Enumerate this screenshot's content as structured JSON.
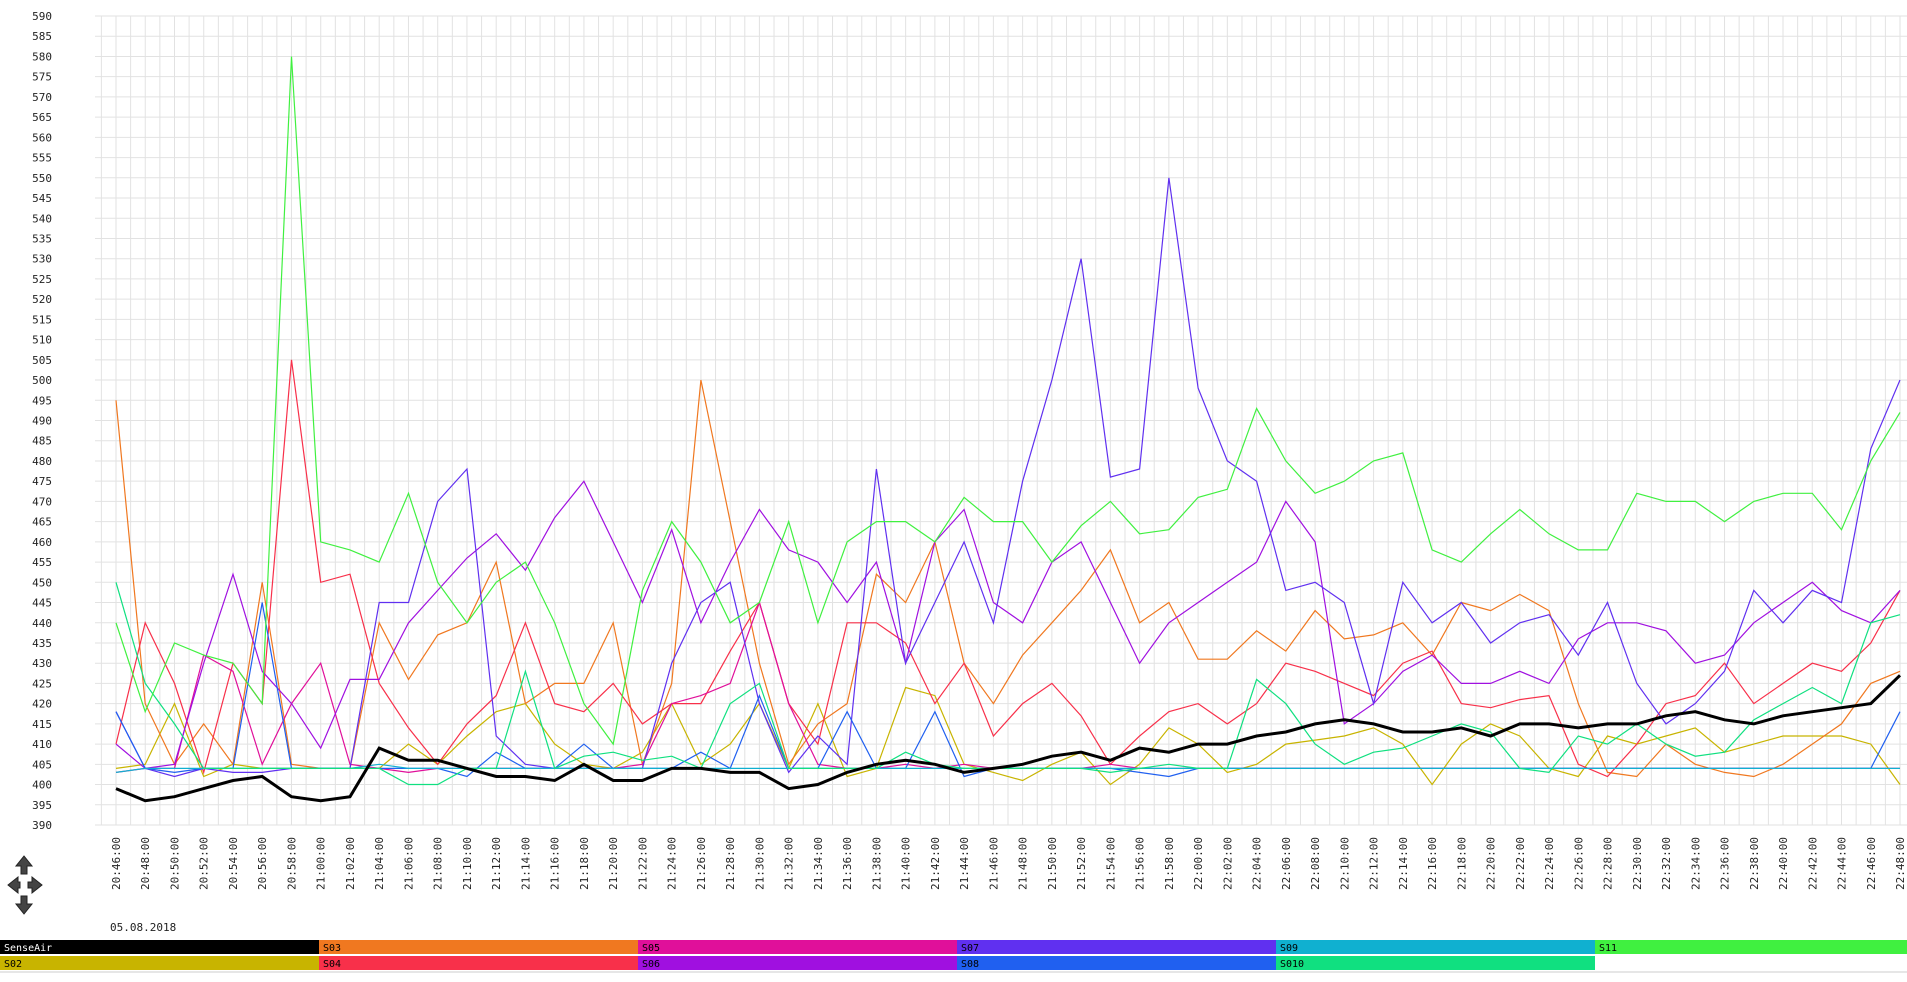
{
  "chart_data": {
    "type": "line",
    "date": "05.08.2018",
    "categories": [
      "20:46:00",
      "20:48:00",
      "20:50:00",
      "20:52:00",
      "20:54:00",
      "20:56:00",
      "20:58:00",
      "21:00:00",
      "21:02:00",
      "21:04:00",
      "21:06:00",
      "21:08:00",
      "21:10:00",
      "21:12:00",
      "21:14:00",
      "21:16:00",
      "21:18:00",
      "21:20:00",
      "21:22:00",
      "21:24:00",
      "21:26:00",
      "21:28:00",
      "21:30:00",
      "21:32:00",
      "21:34:00",
      "21:36:00",
      "21:38:00",
      "21:40:00",
      "21:42:00",
      "21:44:00",
      "21:46:00",
      "21:48:00",
      "21:50:00",
      "21:52:00",
      "21:54:00",
      "21:56:00",
      "21:58:00",
      "22:00:00",
      "22:02:00",
      "22:04:00",
      "22:06:00",
      "22:08:00",
      "22:10:00",
      "22:12:00",
      "22:14:00",
      "22:16:00",
      "22:18:00",
      "22:20:00",
      "22:22:00",
      "22:24:00",
      "22:26:00",
      "22:28:00",
      "22:30:00",
      "22:32:00",
      "22:34:00",
      "22:36:00",
      "22:38:00",
      "22:40:00",
      "22:42:00",
      "22:44:00",
      "22:46:00",
      "22:48:00"
    ],
    "ylim": [
      390,
      590
    ],
    "yticks": [
      390,
      395,
      400,
      405,
      410,
      415,
      420,
      425,
      430,
      435,
      440,
      445,
      450,
      455,
      460,
      465,
      470,
      475,
      480,
      485,
      490,
      495,
      500,
      505,
      510,
      515,
      520,
      525,
      530,
      535,
      540,
      545,
      550,
      555,
      560,
      565,
      570,
      575,
      580,
      585,
      590
    ],
    "grid": true,
    "series": [
      {
        "name": "SenseAir",
        "color": "#000000",
        "values": [
          399,
          396,
          397,
          399,
          401,
          402,
          397,
          396,
          397,
          409,
          406,
          406,
          404,
          402,
          402,
          401,
          405,
          401,
          401,
          404,
          404,
          403,
          403,
          399,
          400,
          403,
          405,
          406,
          405,
          403,
          404,
          405,
          407,
          408,
          406,
          409,
          408,
          410,
          410,
          412,
          413,
          415,
          416,
          415,
          413,
          413,
          414,
          412,
          415,
          415,
          414,
          415,
          415,
          417,
          418,
          416,
          415,
          417,
          418,
          419,
          420,
          427
        ]
      },
      {
        "name": "S02",
        "color": "#c8b400",
        "values": [
          404,
          405,
          420,
          402,
          405,
          404,
          404,
          404,
          404,
          404,
          410,
          405,
          412,
          418,
          420,
          410,
          405,
          404,
          408,
          420,
          405,
          410,
          420,
          404,
          420,
          402,
          404,
          424,
          422,
          405,
          403,
          401,
          405,
          408,
          400,
          405,
          414,
          410,
          403,
          405,
          410,
          411,
          412,
          414,
          410,
          400,
          410,
          415,
          412,
          404,
          402,
          412,
          410,
          412,
          414,
          408,
          410,
          412,
          412,
          412,
          410,
          400
        ]
      },
      {
        "name": "S03",
        "color": "#f07820",
        "values": [
          495,
          420,
          405,
          415,
          405,
          450,
          405,
          404,
          404,
          440,
          426,
          437,
          440,
          455,
          420,
          425,
          425,
          440,
          405,
          425,
          500,
          465,
          430,
          405,
          415,
          420,
          452,
          445,
          460,
          430,
          420,
          432,
          440,
          448,
          458,
          440,
          445,
          431,
          431,
          438,
          433,
          443,
          436,
          437,
          440,
          432,
          445,
          443,
          447,
          443,
          420,
          403,
          402,
          410,
          405,
          403,
          402,
          405,
          410,
          415,
          425,
          428
        ]
      },
      {
        "name": "S04",
        "color": "#f8304a",
        "values": [
          410,
          440,
          425,
          403,
          430,
          420,
          505,
          450,
          452,
          425,
          414,
          405,
          415,
          422,
          440,
          420,
          418,
          425,
          415,
          420,
          420,
          433,
          445,
          420,
          410,
          440,
          440,
          435,
          420,
          430,
          412,
          420,
          425,
          417,
          405,
          412,
          418,
          420,
          415,
          420,
          430,
          428,
          425,
          422,
          430,
          433,
          420,
          419,
          421,
          422,
          405,
          402,
          410,
          420,
          422,
          430,
          420,
          425,
          430,
          428,
          435,
          448
        ]
      },
      {
        "name": "S05",
        "color": "#e0109a",
        "values": [
          403,
          404,
          404,
          432,
          428,
          405,
          420,
          430,
          405,
          404,
          403,
          404,
          404,
          404,
          404,
          404,
          404,
          404,
          405,
          420,
          422,
          425,
          445,
          420,
          405,
          404,
          404,
          405,
          404,
          405,
          404,
          404,
          404,
          404,
          405,
          404,
          404,
          404,
          404,
          404,
          404,
          404,
          404,
          404,
          404,
          404,
          404,
          404,
          404,
          404,
          404,
          404,
          404,
          404,
          404,
          404,
          404,
          404,
          404,
          404,
          404,
          404
        ]
      },
      {
        "name": "S06",
        "color": "#a010e0",
        "values": [
          410,
          404,
          405,
          430,
          452,
          428,
          420,
          409,
          426,
          426,
          440,
          448,
          456,
          462,
          453,
          466,
          475,
          460,
          445,
          463,
          440,
          455,
          468,
          458,
          455,
          445,
          455,
          430,
          460,
          468,
          445,
          440,
          455,
          460,
          445,
          430,
          440,
          445,
          450,
          455,
          470,
          460,
          415,
          420,
          428,
          432,
          425,
          425,
          428,
          425,
          436,
          440,
          440,
          438,
          430,
          432,
          440,
          445,
          450,
          443,
          440,
          448
        ]
      },
      {
        "name": "S07",
        "color": "#6030f0",
        "values": [
          418,
          404,
          402,
          404,
          403,
          403,
          404,
          404,
          404,
          445,
          445,
          470,
          478,
          412,
          405,
          404,
          404,
          404,
          404,
          430,
          445,
          450,
          420,
          403,
          412,
          405,
          478,
          430,
          445,
          460,
          440,
          475,
          500,
          530,
          476,
          478,
          550,
          498,
          480,
          475,
          448,
          450,
          445,
          420,
          450,
          440,
          445,
          435,
          440,
          442,
          432,
          445,
          425,
          415,
          420,
          428,
          448,
          440,
          448,
          445,
          483,
          500
        ]
      },
      {
        "name": "S08",
        "color": "#2060f0",
        "values": [
          418,
          404,
          403,
          404,
          404,
          445,
          404,
          404,
          404,
          404,
          404,
          404,
          402,
          408,
          404,
          404,
          410,
          404,
          404,
          404,
          408,
          404,
          422,
          404,
          404,
          418,
          404,
          404,
          418,
          402,
          404,
          404,
          404,
          404,
          404,
          403,
          402,
          404,
          404,
          404,
          404,
          404,
          404,
          404,
          404,
          404,
          404,
          404,
          404,
          404,
          404,
          404,
          404,
          404,
          404,
          404,
          404,
          404,
          404,
          404,
          404,
          418
        ]
      },
      {
        "name": "S09",
        "color": "#10b0d0",
        "values": [
          403,
          404,
          404,
          404,
          404,
          404,
          404,
          404,
          404,
          405,
          404,
          404,
          404,
          404,
          404,
          404,
          404,
          404,
          404,
          404,
          404,
          404,
          404,
          404,
          404,
          404,
          404,
          404,
          404,
          404,
          404,
          404,
          404,
          404,
          404,
          404,
          404,
          404,
          404,
          404,
          404,
          404,
          404,
          404,
          404,
          404,
          404,
          404,
          404,
          404,
          404,
          404,
          404,
          404,
          404,
          404,
          404,
          404,
          404,
          404,
          404,
          404
        ]
      },
      {
        "name": "S010",
        "color": "#10e080",
        "values": [
          450,
          425,
          415,
          404,
          404,
          404,
          404,
          404,
          404,
          404,
          400,
          400,
          404,
          404,
          428,
          404,
          407,
          408,
          406,
          407,
          404,
          420,
          425,
          404,
          404,
          404,
          404,
          408,
          405,
          404,
          404,
          404,
          404,
          404,
          403,
          404,
          405,
          404,
          404,
          426,
          420,
          410,
          405,
          408,
          409,
          412,
          415,
          413,
          404,
          403,
          412,
          410,
          415,
          410,
          407,
          408,
          416,
          420,
          424,
          420,
          440,
          442
        ]
      },
      {
        "name": "S11",
        "color": "#40f040",
        "values": [
          440,
          418,
          435,
          432,
          430,
          420,
          580,
          460,
          458,
          455,
          472,
          450,
          440,
          450,
          455,
          440,
          420,
          410,
          448,
          465,
          455,
          440,
          445,
          465,
          440,
          460,
          465,
          465,
          460,
          471,
          465,
          465,
          455,
          464,
          470,
          462,
          463,
          471,
          473,
          493,
          480,
          472,
          475,
          480,
          482,
          458,
          455,
          462,
          468,
          462,
          458,
          458,
          472,
          470,
          470,
          465,
          470,
          472,
          472,
          463,
          480,
          492
        ]
      }
    ]
  }
}
